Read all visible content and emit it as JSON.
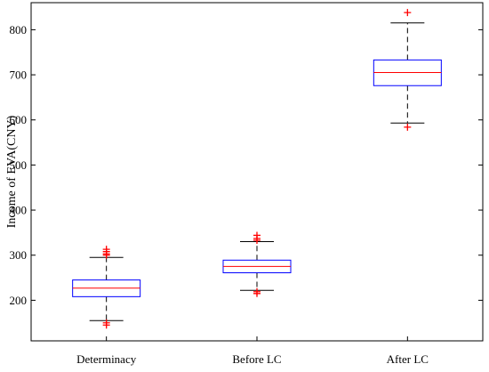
{
  "chart_data": {
    "type": "box",
    "title": "",
    "xlabel": "",
    "ylabel": "Income of EVA(CNY)",
    "ylim": [
      110,
      860
    ],
    "yticks": [
      200,
      300,
      400,
      500,
      600,
      700,
      800
    ],
    "grid": false,
    "categories": [
      "Determinacy",
      "Before LC",
      "After LC"
    ],
    "boxes": [
      {
        "category": "Determinacy",
        "whisker_low": 155,
        "q1": 208,
        "median": 227,
        "q3": 245,
        "whisker_high": 295,
        "outliers": [
          145,
          150,
          300,
          303,
          308,
          313
        ]
      },
      {
        "category": "Before LC",
        "whisker_low": 222,
        "q1": 261,
        "median": 275,
        "q3": 289,
        "whisker_high": 330,
        "outliers": [
          215,
          219,
          333,
          337,
          344
        ]
      },
      {
        "category": "After LC",
        "whisker_low": 593,
        "q1": 676,
        "median": 705,
        "q3": 733,
        "whisker_high": 815,
        "outliers": [
          584,
          838
        ]
      }
    ],
    "colors": {
      "box": "#0000ff",
      "median": "#ff0000",
      "whisker": "#000000",
      "outlier": "#ff0000",
      "axis": "#000000"
    }
  }
}
